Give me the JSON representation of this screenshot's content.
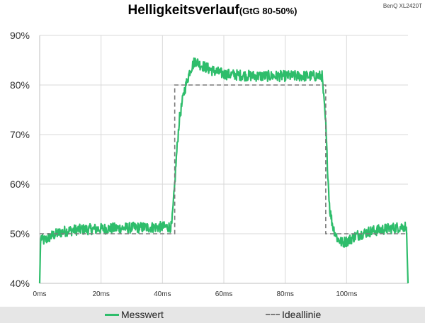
{
  "header": {
    "title": "Helligkeitsverlauf",
    "subtitle": "(GtG 80-50%)",
    "model": "BenQ XL2420T"
  },
  "legend": {
    "measured_label": "Messwert",
    "ideal_label": "Ideallinie"
  },
  "colors": {
    "measured": "#2ebd6b",
    "ideal": "#7a7a7a",
    "grid": "#d9d9d9"
  },
  "chart_data": {
    "type": "line",
    "title": "Helligkeitsverlauf",
    "subtitle": "(GtG 80-50%)",
    "xlabel": "",
    "ylabel": "",
    "xlim": [
      0,
      120
    ],
    "ylim": [
      40,
      90
    ],
    "x_ticks": [
      0,
      20,
      40,
      60,
      80,
      100
    ],
    "x_tick_labels": [
      "0ms",
      "20ms",
      "40ms",
      "60ms",
      "80ms",
      "100ms"
    ],
    "y_ticks": [
      40,
      50,
      60,
      70,
      80,
      90
    ],
    "y_tick_labels": [
      "40%",
      "50%",
      "60%",
      "70%",
      "80%",
      "90%"
    ],
    "grid": true,
    "legend_position": "bottom",
    "series": [
      {
        "name": "Messwert",
        "style": "solid",
        "x": [
          0,
          0.3,
          0.6,
          1,
          2,
          3,
          4,
          6,
          8,
          12,
          20,
          30,
          43,
          43.8,
          44.6,
          45.5,
          47,
          49,
          50.7,
          52,
          54,
          56,
          60,
          70,
          80,
          92,
          93.2,
          93.8,
          94.5,
          95.5,
          97,
          98.5,
          100.5,
          103,
          107,
          112,
          116,
          119,
          119.5,
          120
        ],
        "y": [
          40,
          49,
          49.3,
          48.6,
          48.8,
          49.2,
          49.6,
          50.1,
          50.5,
          50.8,
          51,
          51.2,
          51.4,
          58,
          66,
          73,
          78.5,
          83,
          85,
          84.2,
          83.6,
          83,
          82.2,
          81.8,
          81.8,
          81.8,
          72,
          63,
          55,
          51.5,
          49,
          48.2,
          48.6,
          49.6,
          50.4,
          50.9,
          51.2,
          51.5,
          51.3,
          40
        ]
      },
      {
        "name": "Ideallinie",
        "style": "dashed",
        "x": [
          0,
          44,
          44,
          93.2,
          93.2,
          120
        ],
        "y": [
          50,
          50,
          80,
          80,
          50,
          50
        ]
      }
    ]
  }
}
